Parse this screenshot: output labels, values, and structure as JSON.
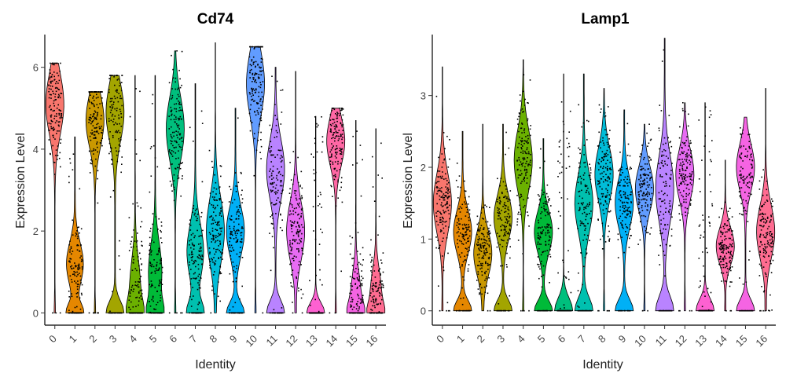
{
  "chart_data": [
    {
      "type": "violin",
      "title": "Cd74",
      "xlabel": "Identity",
      "ylabel": "Expression Level",
      "ylim": [
        -0.3,
        6.8
      ],
      "y_ticks": [
        "0",
        "2",
        "4",
        "6"
      ],
      "y_tick_values": [
        0,
        2,
        4,
        6
      ],
      "categories": [
        "0",
        "1",
        "2",
        "3",
        "4",
        "5",
        "6",
        "7",
        "8",
        "9",
        "10",
        "11",
        "12",
        "13",
        "14",
        "15",
        "16"
      ],
      "max_values": [
        6.1,
        4.3,
        5.4,
        5.8,
        5.8,
        5.8,
        6.4,
        5.6,
        6.6,
        5.0,
        6.5,
        6.0,
        5.9,
        4.8,
        5.0,
        4.7,
        4.5
      ],
      "median_values": [
        5.1,
        1.2,
        4.7,
        4.9,
        0.6,
        1.0,
        4.5,
        1.5,
        2.0,
        2.0,
        5.6,
        3.5,
        2.0,
        0,
        4.2,
        0.4,
        0.5
      ]
    },
    {
      "type": "violin",
      "title": "Lamp1",
      "xlabel": "Identity",
      "ylabel": "Expression Level",
      "ylim": [
        -0.2,
        3.85
      ],
      "y_ticks": [
        "0",
        "1",
        "2",
        "3"
      ],
      "y_tick_values": [
        0,
        1,
        2,
        3
      ],
      "categories": [
        "0",
        "1",
        "2",
        "3",
        "4",
        "5",
        "6",
        "7",
        "8",
        "9",
        "10",
        "11",
        "12",
        "13",
        "14",
        "15",
        "16"
      ],
      "max_values": [
        3.4,
        2.5,
        2.6,
        2.6,
        3.5,
        2.4,
        3.3,
        3.3,
        3.1,
        2.8,
        2.6,
        3.8,
        2.9,
        2.9,
        2.1,
        2.7,
        3.1
      ],
      "median_values": [
        1.5,
        1.1,
        0.8,
        1.3,
        2.1,
        1.1,
        0,
        1.5,
        1.9,
        1.5,
        1.7,
        1.7,
        1.9,
        0,
        0.9,
        2.0,
        1.1
      ]
    }
  ],
  "colors": [
    "#F8766D",
    "#E58700",
    "#C99800",
    "#A3A500",
    "#6BB100",
    "#00BA38",
    "#00BF7D",
    "#00C0AF",
    "#00BCD8",
    "#00B0F6",
    "#619CFF",
    "#B983FF",
    "#E76BF3",
    "#FD61D1",
    "#FF67A4",
    "#F564E3",
    "#FF6C91"
  ]
}
